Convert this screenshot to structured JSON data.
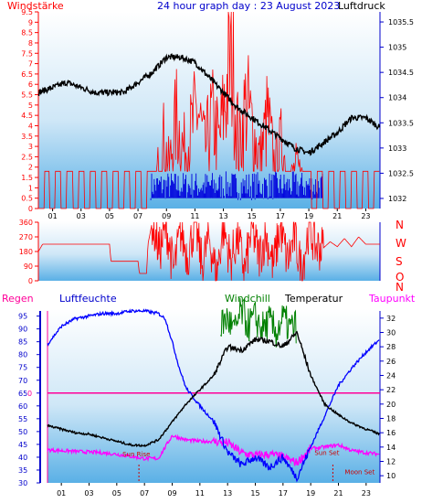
{
  "header": {
    "left_label": "Windstärke",
    "title": "24 hour graph day : 23 August 2023",
    "right_label": "Luftdruck"
  },
  "compass": [
    "N",
    "W",
    "S",
    "O",
    "N"
  ],
  "legend2": {
    "regen": "Regen",
    "luftfeuchte": "Luftfeuchte",
    "windchill": "Windchill",
    "temperatur": "Temperatur",
    "taupunkt": "Taupunkt"
  },
  "annotations": {
    "sun_rise": "Sun Rise",
    "sun_set": "Sun Set",
    "moon_set": "Moon Set",
    "zero": "0"
  },
  "colors": {
    "wind": "#ff0000",
    "gust": "#0000dd",
    "pressure": "#000000",
    "direction": "#ff0000",
    "humidity": "#0000ff",
    "windchill": "#008000",
    "temperature": "#000000",
    "dewpoint": "#ff00ff",
    "rain": "#ff0099",
    "axis_left": "#ff0000",
    "axis_right": "#0000cc",
    "bg_top": "#ffffff",
    "bg_bottom": "#5ab0e6"
  },
  "chart_data": [
    {
      "type": "line",
      "name": "wind_pressure",
      "x_ticks": [
        "01",
        "03",
        "05",
        "07",
        "09",
        "11",
        "13",
        "15",
        "17",
        "19",
        "21",
        "23"
      ],
      "y_left": {
        "label": "Windstärke",
        "ticks": [
          "0",
          "0.5",
          "1",
          "1.5",
          "2",
          "2.5",
          "3",
          "3.5",
          "4",
          "4.5",
          "5",
          "5.5",
          "6",
          "6.5",
          "7",
          "7.5",
          "8",
          "8.5",
          "9",
          "9.5"
        ],
        "range": [
          0,
          9.5
        ]
      },
      "y_right": {
        "label": "Luftdruck",
        "ticks": [
          "1032",
          "1032.5",
          "1033",
          "1033.5",
          "1034",
          "1034.5",
          "1035",
          "1035.5"
        ],
        "range": [
          1031.8,
          1035.7
        ]
      },
      "series": [
        {
          "name": "Luftdruck",
          "x": [
            0,
            2,
            4,
            5,
            6,
            7,
            8,
            9,
            10,
            11,
            12,
            13,
            14,
            15,
            16,
            17,
            18,
            19,
            20,
            21,
            22,
            23,
            24
          ],
          "values": [
            1034.1,
            1034.3,
            1034.1,
            1034.1,
            1034.1,
            1034.3,
            1034.5,
            1034.8,
            1034.8,
            1034.7,
            1034.4,
            1034.1,
            1033.8,
            1033.6,
            1033.4,
            1033.2,
            1033.0,
            1032.9,
            1033.1,
            1033.3,
            1033.6,
            1033.6,
            1033.4
          ]
        },
        {
          "name": "Windstärke",
          "x": [
            0,
            0.4,
            0.8,
            1.2,
            7.9,
            8.3,
            8.7,
            9.2,
            9.7,
            10.2,
            10.7,
            11.2,
            11.7,
            12.2,
            12.7,
            13.2,
            13.6,
            14.1,
            14.6,
            15.1,
            15.6,
            16.1,
            16.6,
            17.1,
            17.6,
            18.1,
            18.6,
            19.1,
            19.6,
            20.1,
            20.6,
            21.1,
            21.6,
            22.1,
            22.6,
            23.1,
            23.6
          ],
          "values": [
            0,
            1.8,
            0,
            1.8,
            0,
            1.8,
            4.5,
            2.5,
            5.5,
            3.5,
            4.5,
            6,
            3.5,
            5.5,
            4,
            7,
            9.5,
            3.5,
            6.5,
            4.5,
            3,
            5.5,
            2.5,
            4,
            1.5,
            2.5,
            1.8,
            1,
            0,
            1.8,
            0,
            1.8,
            0,
            1.8,
            0,
            1.8,
            0
          ]
        },
        {
          "name": "Böen",
          "x": [
            7.9,
            9,
            10,
            11,
            12,
            13,
            14,
            15,
            16,
            17,
            18,
            19,
            20
          ],
          "values": [
            1.8,
            1.8,
            1.8,
            1.8,
            1.8,
            1.8,
            1.8,
            1.8,
            1.8,
            1.8,
            1.8,
            1.8,
            1.8
          ]
        }
      ]
    },
    {
      "type": "line",
      "name": "wind_direction",
      "y_ticks": [
        "0",
        "90",
        "180",
        "270",
        "360"
      ],
      "range": [
        0,
        360
      ],
      "series": [
        {
          "name": "Windrichtung",
          "x": [
            0,
            0.3,
            5,
            5.1,
            7,
            7.1,
            7.6,
            7.7,
            8,
            8.5,
            9,
            9.5,
            10,
            10.5,
            11,
            11.5,
            12,
            12.5,
            13,
            13.5,
            14,
            14.5,
            15,
            15.5,
            16,
            16.5,
            17,
            17.5,
            18,
            18.5,
            19,
            19.5,
            20,
            20.5,
            21,
            21.5,
            22,
            22.5,
            23,
            24
          ],
          "values": [
            180,
            225,
            225,
            120,
            120,
            45,
            45,
            225,
            360,
            180,
            330,
            60,
            300,
            150,
            360,
            90,
            270,
            30,
            340,
            120,
            270,
            60,
            320,
            150,
            280,
            90,
            330,
            120,
            270,
            60,
            330,
            210,
            200,
            240,
            210,
            260,
            210,
            270,
            225,
            225
          ]
        }
      ]
    },
    {
      "type": "line",
      "name": "temperature_humidity",
      "y_left": {
        "ticks": [
          "30",
          "35",
          "40",
          "45",
          "50",
          "55",
          "60",
          "65",
          "70",
          "75",
          "80",
          "85",
          "90",
          "95"
        ],
        "range": [
          30,
          97
        ]
      },
      "y_right": {
        "ticks": [
          "10",
          "12",
          "14",
          "16",
          "18",
          "20",
          "22",
          "24",
          "26",
          "28",
          "30",
          "32"
        ],
        "range": [
          9,
          33
        ]
      },
      "series": [
        {
          "name": "Luftfeuchte",
          "x": [
            0,
            1,
            2,
            3,
            4,
            5,
            6,
            7,
            8,
            8.5,
            9,
            9.5,
            10,
            11,
            12,
            13,
            14,
            15,
            16,
            17,
            18,
            19,
            20,
            21,
            22,
            23,
            24
          ],
          "values": [
            84,
            91,
            94,
            95,
            96,
            96,
            97,
            97,
            96,
            94,
            85,
            75,
            67,
            60,
            54,
            42,
            37,
            40,
            36,
            40,
            32,
            44,
            56,
            68,
            75,
            81,
            86
          ]
        },
        {
          "name": "Temperatur",
          "x": [
            0,
            1,
            2,
            3,
            4,
            5,
            6,
            7,
            8,
            9,
            10,
            11,
            12,
            13,
            14,
            15,
            16,
            17,
            18,
            19,
            20,
            21,
            22,
            23,
            24
          ],
          "values": [
            17,
            16.5,
            16,
            15.8,
            15.3,
            14.8,
            14.3,
            14.2,
            15,
            17.5,
            20,
            22,
            24,
            28,
            27.5,
            29,
            28.8,
            28,
            30,
            24,
            20,
            18.5,
            17.3,
            16.5,
            15.8
          ]
        },
        {
          "name": "Windchill",
          "x": [
            12.5,
            13,
            13.5,
            14,
            14.5,
            15,
            15.5,
            16,
            16.5,
            17,
            17.5,
            18
          ],
          "values": [
            31,
            32,
            30,
            33,
            31,
            32,
            30.5,
            31.5,
            30,
            32,
            30.5,
            31
          ]
        },
        {
          "name": "Taupunkt",
          "x": [
            0,
            2,
            4,
            5,
            6,
            7,
            8,
            9,
            10,
            11,
            12,
            13,
            14,
            15,
            16,
            17,
            18,
            19,
            20,
            21,
            22,
            23,
            24
          ],
          "values": [
            13.6,
            13.4,
            13.2,
            13,
            12.7,
            12.4,
            12.4,
            15.6,
            15,
            14.8,
            14.8,
            14.6,
            13.2,
            12.8,
            13,
            12.6,
            11.8,
            13.8,
            14,
            14.3,
            13.5,
            13.2,
            13
          ]
        }
      ],
      "rain": {
        "value": 0
      },
      "events": {
        "sun_rise_hour": 6.6,
        "sun_set_hour": 20.6
      }
    }
  ]
}
